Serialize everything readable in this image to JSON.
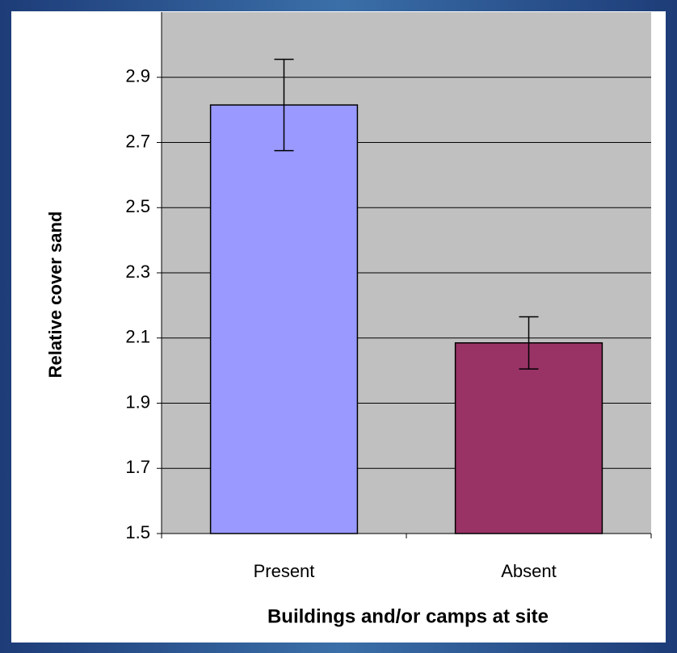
{
  "chart_data": {
    "type": "bar",
    "x_label": "Buildings and/or camps at site",
    "y_label": "Relative cover sand",
    "categories": [
      "Present",
      "Absent"
    ],
    "values": [
      2.815,
      2.085
    ],
    "errors": [
      0.14,
      0.08
    ],
    "colors": [
      "#9999ff",
      "#993366"
    ],
    "ylim": [
      1.5,
      3.1
    ],
    "yticks": [
      1.5,
      1.7,
      1.9,
      2.1,
      2.3,
      2.5,
      2.7,
      2.9
    ],
    "grid": true
  }
}
